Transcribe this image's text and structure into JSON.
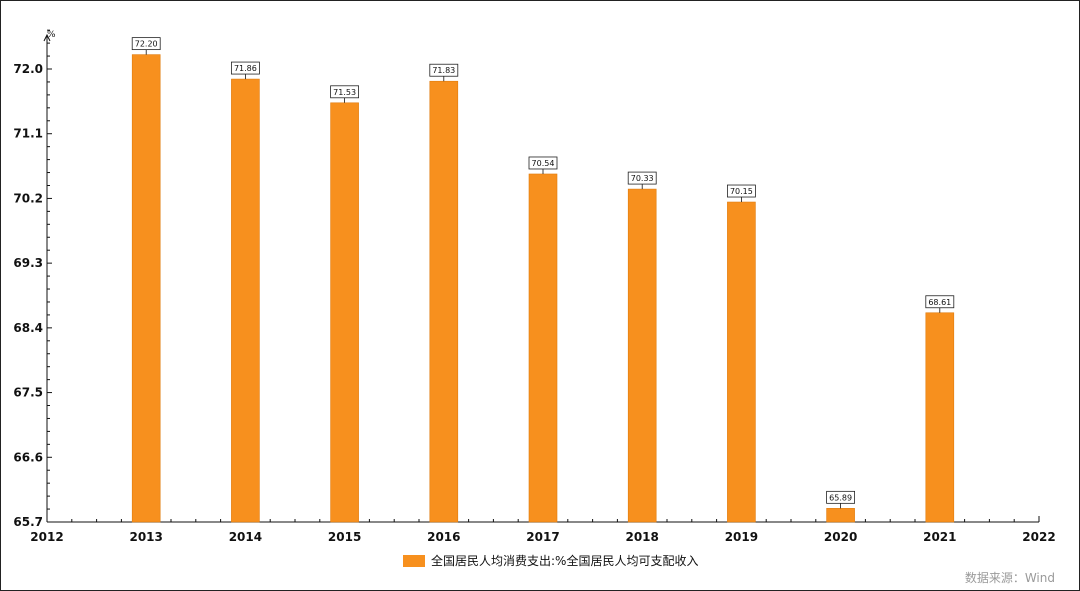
{
  "chart_data": {
    "type": "bar",
    "unit_label": "%",
    "x_ticks": [
      "2012",
      "2013",
      "2014",
      "2015",
      "2016",
      "2017",
      "2018",
      "2019",
      "2020",
      "2021",
      "2022"
    ],
    "categories": [
      "2013",
      "2014",
      "2015",
      "2016",
      "2017",
      "2018",
      "2019",
      "2020",
      "2021"
    ],
    "values": [
      72.2,
      71.86,
      71.53,
      71.83,
      70.54,
      70.33,
      70.15,
      65.89,
      68.61
    ],
    "value_labels": [
      "72.20",
      "71.86",
      "71.53",
      "71.83",
      "70.54",
      "70.33",
      "70.15",
      "65.89",
      "68.61"
    ],
    "y_ticks": [
      "65.7",
      "66.6",
      "67.5",
      "68.4",
      "69.3",
      "70.2",
      "71.1",
      "72.0"
    ],
    "ylim": [
      65.7,
      72.7
    ],
    "legend": {
      "label": "全国居民人均消费支出:%全国居民人均可支配收入",
      "placement": "bottom-center"
    },
    "grid": false,
    "colors": {
      "bar": "#F7901E",
      "bar_edge": "#E07C0E"
    },
    "source": "数据来源：Wind"
  }
}
